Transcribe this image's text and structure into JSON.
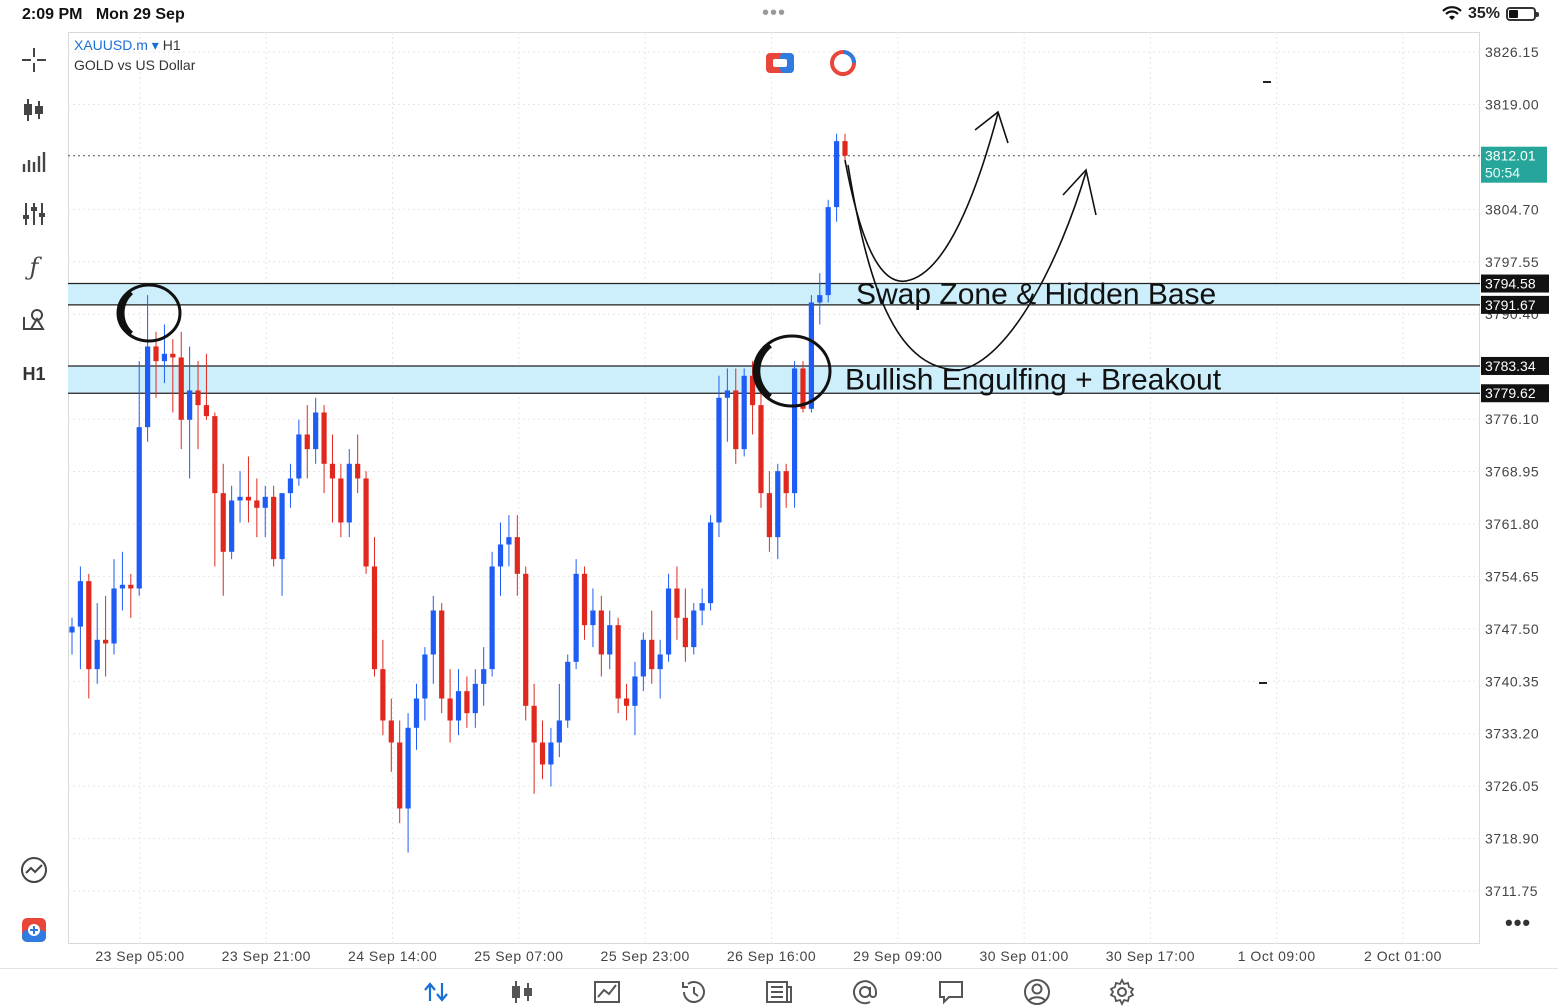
{
  "status_bar": {
    "time": "2:09 PM",
    "date": "Mon 29 Sep",
    "battery": "35%",
    "battery_level": 0.35
  },
  "symbol": {
    "name": "XAUUSD.m",
    "caret": "▾",
    "timeframe": "H1",
    "description": "GOLD vs US Dollar"
  },
  "left_toolbar": {
    "timeframe_label": "H1",
    "icons": [
      "crosshair-icon",
      "candlestick-icon",
      "indicators-icon",
      "sliders-icon",
      "function-icon",
      "objects-icon",
      "timeframe-icon",
      "performance-icon",
      "app-logo-icon"
    ]
  },
  "chart_data": {
    "type": "candlestick",
    "y_ticks": [
      "3826.15",
      "3819.00",
      "3804.70",
      "3797.55",
      "3790.40",
      "3776.10",
      "3768.95",
      "3761.80",
      "3754.65",
      "3747.50",
      "3740.35",
      "3733.20",
      "3726.05",
      "3718.90",
      "3711.75"
    ],
    "x_ticks": [
      "23 Sep 05:00",
      "23 Sep 21:00",
      "24 Sep 14:00",
      "25 Sep 07:00",
      "25 Sep 23:00",
      "26 Sep 16:00",
      "29 Sep 09:00",
      "30 Sep 01:00",
      "30 Sep 17:00",
      "1 Oct 09:00",
      "2 Oct 01:00"
    ],
    "ylim": [
      3708.0,
      3829.0
    ],
    "current_price": {
      "value": "3812.01",
      "countdown": "50:54",
      "color": "#26a69a"
    },
    "zones": [
      {
        "top": 3794.58,
        "bottom": 3791.67,
        "top_label": "3794.58",
        "bottom_label": "3791.67",
        "annotation": "Swap Zone  & Hidden Base"
      },
      {
        "top": 3783.34,
        "bottom": 3779.62,
        "top_label": "3783.34",
        "bottom_label": "3779.62",
        "annotation": "Bullish Engulfing + Breakout"
      }
    ],
    "colors": {
      "up": "#1f5cf5",
      "down": "#e0281e",
      "zone": "#cdeefb",
      "grid": "#e6e6e6"
    },
    "candles": [
      [
        3747.0,
        3749.0,
        3744.0,
        3747.8
      ],
      [
        3747.8,
        3756.0,
        3742.0,
        3754.0
      ],
      [
        3754.0,
        3755.0,
        3738.0,
        3742.0
      ],
      [
        3742.0,
        3751.0,
        3740.0,
        3746.0
      ],
      [
        3746.0,
        3752.0,
        3741.0,
        3745.5
      ],
      [
        3745.5,
        3757.0,
        3744.0,
        3753.0
      ],
      [
        3753.0,
        3758.0,
        3750.0,
        3753.5
      ],
      [
        3753.5,
        3755.0,
        3749.0,
        3753.0
      ],
      [
        3753.0,
        3784.0,
        3752.0,
        3775.0
      ],
      [
        3775.0,
        3793.0,
        3773.0,
        3786.0
      ],
      [
        3786.0,
        3788.0,
        3779.0,
        3784.0
      ],
      [
        3784.0,
        3789.0,
        3781.0,
        3785.0
      ],
      [
        3785.0,
        3787.0,
        3777.0,
        3784.5
      ],
      [
        3784.5,
        3788.0,
        3772.0,
        3776.0
      ],
      [
        3776.0,
        3786.0,
        3768.0,
        3780.0
      ],
      [
        3780.0,
        3784.0,
        3772.0,
        3778.0
      ],
      [
        3778.0,
        3785.0,
        3776.0,
        3776.5
      ],
      [
        3776.5,
        3777.0,
        3756.0,
        3766.0
      ],
      [
        3766.0,
        3770.0,
        3752.0,
        3758.0
      ],
      [
        3758.0,
        3767.0,
        3757.0,
        3765.0
      ],
      [
        3765.0,
        3769.0,
        3762.0,
        3765.5
      ],
      [
        3765.5,
        3771.0,
        3762.0,
        3765.0
      ],
      [
        3765.0,
        3768.0,
        3760.0,
        3764.0
      ],
      [
        3764.0,
        3767.0,
        3760.0,
        3765.5
      ],
      [
        3765.5,
        3767.0,
        3756.0,
        3757.0
      ],
      [
        3757.0,
        3766.0,
        3752.0,
        3766.0
      ],
      [
        3766.0,
        3770.0,
        3764.0,
        3768.0
      ],
      [
        3768.0,
        3776.0,
        3767.0,
        3774.0
      ],
      [
        3774.0,
        3778.0,
        3768.0,
        3772.0
      ],
      [
        3772.0,
        3779.0,
        3770.0,
        3777.0
      ],
      [
        3777.0,
        3778.0,
        3766.0,
        3770.0
      ],
      [
        3770.0,
        3774.0,
        3762.0,
        3768.0
      ],
      [
        3768.0,
        3770.0,
        3760.0,
        3762.0
      ],
      [
        3762.0,
        3772.0,
        3760.0,
        3770.0
      ],
      [
        3770.0,
        3774.0,
        3766.0,
        3768.0
      ],
      [
        3768.0,
        3769.0,
        3755.0,
        3756.0
      ],
      [
        3756.0,
        3760.0,
        3741.0,
        3742.0
      ],
      [
        3742.0,
        3746.0,
        3733.0,
        3735.0
      ],
      [
        3735.0,
        3738.0,
        3728.0,
        3732.0
      ],
      [
        3732.0,
        3735.0,
        3721.0,
        3723.0
      ],
      [
        3723.0,
        3736.0,
        3717.0,
        3734.0
      ],
      [
        3734.0,
        3740.0,
        3731.0,
        3738.0
      ],
      [
        3738.0,
        3745.0,
        3735.0,
        3744.0
      ],
      [
        3744.0,
        3752.0,
        3740.0,
        3750.0
      ],
      [
        3750.0,
        3751.0,
        3736.0,
        3738.0
      ],
      [
        3738.0,
        3742.0,
        3732.0,
        3735.0
      ],
      [
        3735.0,
        3742.0,
        3733.0,
        3739.0
      ],
      [
        3739.0,
        3741.0,
        3734.0,
        3736.0
      ],
      [
        3736.0,
        3742.0,
        3734.0,
        3740.0
      ],
      [
        3740.0,
        3745.0,
        3737.0,
        3742.0
      ],
      [
        3742.0,
        3758.0,
        3741.0,
        3756.0
      ],
      [
        3756.0,
        3762.0,
        3752.0,
        3759.0
      ],
      [
        3759.0,
        3763.0,
        3756.0,
        3760.0
      ],
      [
        3760.0,
        3763.0,
        3752.0,
        3755.0
      ],
      [
        3755.0,
        3756.0,
        3735.0,
        3737.0
      ],
      [
        3737.0,
        3740.0,
        3725.0,
        3732.0
      ],
      [
        3732.0,
        3735.0,
        3727.0,
        3729.0
      ],
      [
        3729.0,
        3734.0,
        3726.0,
        3732.0
      ],
      [
        3732.0,
        3740.0,
        3730.0,
        3735.0
      ],
      [
        3735.0,
        3744.0,
        3734.0,
        3743.0
      ],
      [
        3743.0,
        3757.0,
        3742.0,
        3755.0
      ],
      [
        3755.0,
        3756.0,
        3746.0,
        3748.0
      ],
      [
        3748.0,
        3753.0,
        3745.0,
        3750.0
      ],
      [
        3750.0,
        3752.0,
        3741.0,
        3744.0
      ],
      [
        3744.0,
        3750.0,
        3742.0,
        3748.0
      ],
      [
        3748.0,
        3749.0,
        3736.0,
        3738.0
      ],
      [
        3738.0,
        3740.0,
        3735.0,
        3737.0
      ],
      [
        3737.0,
        3743.0,
        3733.0,
        3741.0
      ],
      [
        3741.0,
        3747.0,
        3739.0,
        3746.0
      ],
      [
        3746.0,
        3750.0,
        3740.0,
        3742.0
      ],
      [
        3742.0,
        3746.0,
        3738.0,
        3744.0
      ],
      [
        3744.0,
        3755.0,
        3743.0,
        3753.0
      ],
      [
        3753.0,
        3756.0,
        3746.0,
        3749.0
      ],
      [
        3749.0,
        3753.0,
        3743.0,
        3745.0
      ],
      [
        3745.0,
        3751.0,
        3744.0,
        3750.0
      ],
      [
        3750.0,
        3753.0,
        3748.0,
        3751.0
      ],
      [
        3751.0,
        3763.0,
        3750.0,
        3762.0
      ],
      [
        3762.0,
        3782.0,
        3760.0,
        3779.0
      ],
      [
        3779.0,
        3783.0,
        3773.0,
        3780.0
      ],
      [
        3780.0,
        3783.0,
        3770.0,
        3772.0
      ],
      [
        3772.0,
        3783.0,
        3771.0,
        3782.0
      ],
      [
        3782.0,
        3784.0,
        3774.0,
        3778.0
      ],
      [
        3778.0,
        3781.0,
        3764.0,
        3766.0
      ],
      [
        3766.0,
        3769.0,
        3758.0,
        3760.0
      ],
      [
        3760.0,
        3770.0,
        3757.0,
        3769.0
      ],
      [
        3769.0,
        3770.0,
        3764.0,
        3766.0
      ],
      [
        3766.0,
        3784.0,
        3764.0,
        3783.0
      ],
      [
        3783.0,
        3784.0,
        3777.0,
        3777.5
      ],
      [
        3777.5,
        3793.0,
        3777.0,
        3792.0
      ],
      [
        3792.0,
        3796.0,
        3789.0,
        3793.0
      ],
      [
        3793.0,
        3806.0,
        3792.0,
        3805.0
      ],
      [
        3805.0,
        3815.0,
        3803.0,
        3814.0
      ],
      [
        3814.0,
        3815.0,
        3811.0,
        3812.01
      ]
    ]
  },
  "bottom_nav": {
    "icons": [
      "quotes-icon",
      "chart-icon",
      "trade-icon",
      "history-icon",
      "news-icon",
      "mail-icon",
      "chat-icon",
      "account-icon",
      "settings-icon"
    ]
  }
}
